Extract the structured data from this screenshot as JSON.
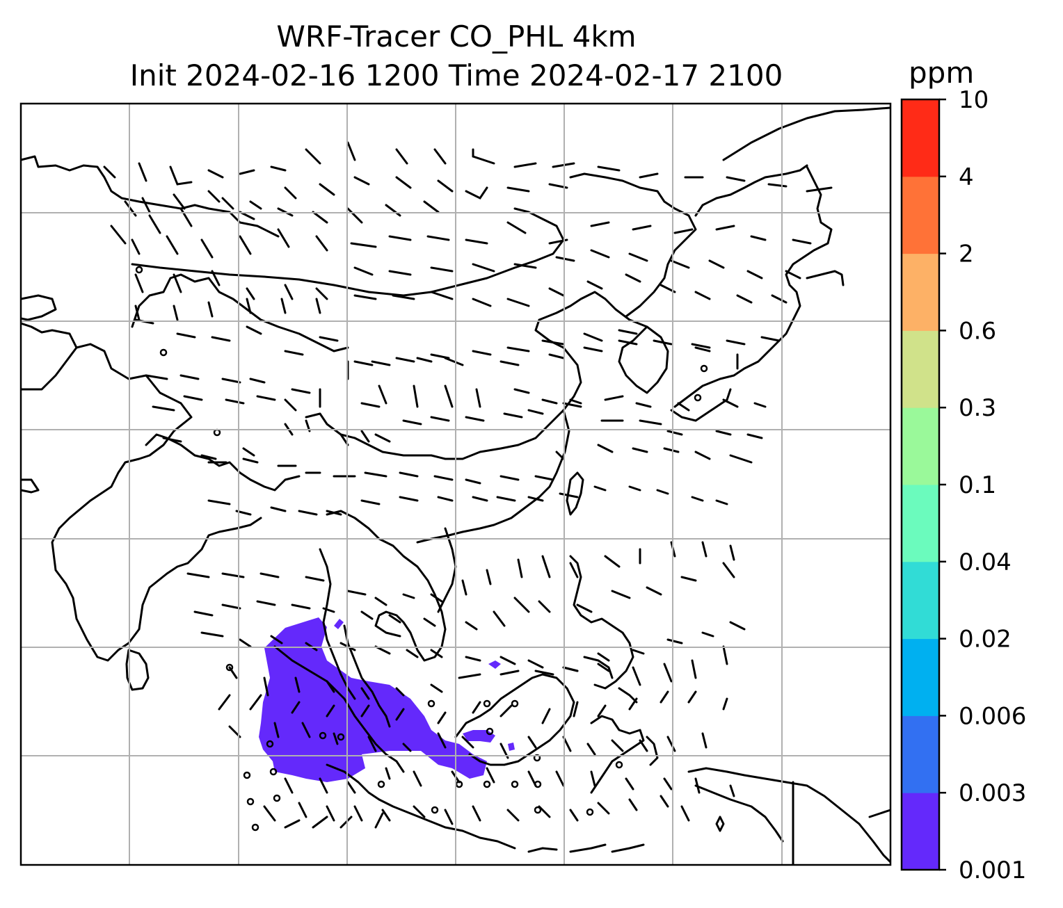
{
  "title": {
    "line1": "WRF-Tracer CO_PHL 4km",
    "line2": "Init 2024-02-16 1200 Time 2024-02-17 2100"
  },
  "colorbar": {
    "unit": "ppm",
    "levels": [
      "0.001",
      "0.003",
      "0.006",
      "0.02",
      "0.04",
      "0.1",
      "0.3",
      "0.6",
      "2",
      "4",
      "10"
    ],
    "colors": [
      "#6429fb",
      "#3270f2",
      "#00b0f0",
      "#31dcd6",
      "#6bfbbd",
      "#9af99a",
      "#d0e28a",
      "#fdb166",
      "#ff7237",
      "#ff2b17"
    ]
  },
  "map": {
    "plume_color": "#6429fb",
    "gridline_color": "#b0b0b0",
    "coastline_color": "#000000"
  }
}
